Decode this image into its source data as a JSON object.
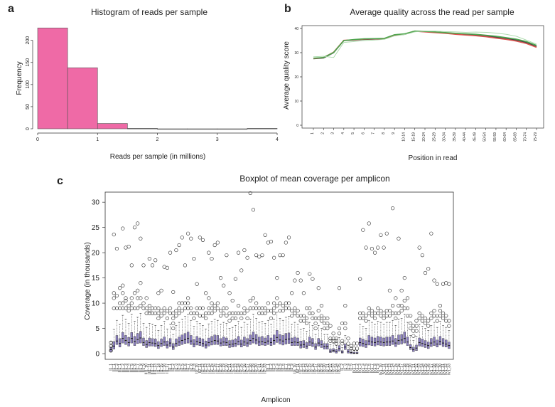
{
  "panels": {
    "a": "a",
    "b": "b",
    "c": "c"
  },
  "chart_data": [
    {
      "type": "bar",
      "title": "Histogram of reads per sample",
      "xlabel": "Reads per sample (in millions)",
      "ylabel": "Frequency",
      "xlim": [
        0,
        4
      ],
      "ylim": [
        0,
        230
      ],
      "xticks": [
        "0",
        "1",
        "2",
        "3",
        "4"
      ],
      "yticks": [
        "0",
        "50",
        "100",
        "150",
        "200"
      ],
      "bin_width": 0.5,
      "bins": [
        [
          0,
          0.5
        ],
        [
          0.5,
          1.0
        ],
        [
          1.0,
          1.5
        ],
        [
          1.5,
          2.0
        ],
        [
          2.0,
          2.5
        ],
        [
          2.5,
          3.0
        ],
        [
          3.0,
          3.5
        ],
        [
          3.5,
          4.0
        ]
      ],
      "values": [
        228,
        138,
        12,
        1,
        0,
        0,
        0,
        1
      ],
      "color": "#ef6aa6",
      "grid": false
    },
    {
      "type": "line",
      "title": "Average quality across the read per sample",
      "xlabel": "Position in read",
      "ylabel": "Average quality score",
      "ylim": [
        0,
        40
      ],
      "yticks": [
        "0",
        "10",
        "20",
        "30",
        "40"
      ],
      "categories": [
        "1",
        "2",
        "3",
        "4",
        "5",
        "6",
        "7",
        "8",
        "9",
        "10-14",
        "15-19",
        "20-24",
        "25-29",
        "30-34",
        "35-39",
        "40-44",
        "45-49",
        "50-54",
        "55-59",
        "60-64",
        "65-69",
        "70-74",
        "75-79"
      ],
      "series": [
        {
          "color": "#444444",
          "values": [
            27.5,
            27.8,
            30,
            35,
            35.2,
            35.5,
            35.6,
            35.7,
            37.2,
            37.6,
            38.8,
            38.7,
            38.4,
            38.1,
            37.8,
            37.5,
            37.3,
            36.9,
            36.4,
            35.8,
            35.2,
            34.2,
            32.5
          ]
        },
        {
          "color": "#d9534f",
          "values": [
            27.6,
            28,
            30.2,
            35.1,
            35.3,
            35.6,
            35.7,
            35.8,
            37.3,
            37.7,
            38.9,
            38.6,
            38.3,
            38,
            37.6,
            37.3,
            37,
            36.6,
            36,
            35.5,
            34.8,
            33.8,
            32.2
          ]
        },
        {
          "color": "#4fa64f",
          "values": [
            27.7,
            28,
            30.1,
            35,
            35.4,
            35.7,
            35.8,
            35.9,
            37.4,
            37.8,
            38.9,
            38.8,
            38.6,
            38.3,
            38,
            37.8,
            37.6,
            37.2,
            36.8,
            36.2,
            35.6,
            34.6,
            33
          ]
        },
        {
          "color": "#a8d8a8",
          "values": [
            28.3,
            28.5,
            28,
            34.2,
            34.6,
            35,
            35.2,
            35.5,
            36.9,
            37.5,
            38.6,
            38.9,
            38.9,
            38.7,
            38.6,
            38.4,
            38.5,
            38.4,
            38.1,
            37.6,
            36.8,
            35.2,
            33.5
          ]
        }
      ],
      "grid": false
    },
    {
      "type": "box",
      "title": "Boxplot of mean coverage per amplicon",
      "xlabel": "Amplicon",
      "ylabel": "Coverage (in thousands)",
      "ylim": [
        0,
        32
      ],
      "yticks": [
        "0",
        "5",
        "10",
        "15",
        "20",
        "25",
        "30"
      ],
      "box_color": "#8b7fc0",
      "amplicon_count": 115,
      "x_tick_labels": [
        "I1_1",
        "II1_1",
        "II1_2",
        "III1_1",
        "III1_2",
        "III1_3",
        "III1_4",
        "III1_5",
        "III1_6",
        "III1_7",
        "III1_8",
        "III1_9",
        "III1_10",
        "III1_11",
        "III1_12",
        "III1_13",
        "II1_14",
        "II1_15",
        "II1_16",
        "II1_17",
        "II2_1",
        "II2_2",
        "II2_3",
        "II2_4",
        "II2_5",
        "II2_6",
        "II2_7",
        "II2_8",
        "II2_9",
        "II2_10",
        "II2_11",
        "II2_12",
        "II2_13",
        "II2_14",
        "II2_15",
        "II2_16",
        "II2_17",
        "II2_18",
        "II2_19",
        "II2_20",
        "II2_21",
        "II2_22",
        "II2_23",
        "II2_24",
        "II2_25",
        "II2_26",
        "II2_27",
        "II2_28",
        "II2_29",
        "II2_30",
        "II2_31",
        "II2_32",
        "II2_33",
        "II3_1",
        "II3_2",
        "II3_3",
        "II3_4",
        "II3_5",
        "II3_6",
        "II3_7",
        "II3_8",
        "II3_9",
        "II3_10",
        "II3_11",
        "II3_12",
        "II3_13",
        "II3_14",
        "II3_15",
        "II3_16",
        "II3_17",
        "II3_18",
        "II3_19",
        "II3_20",
        "II3_21",
        "II3_22",
        "II3_23",
        "II3_24",
        "II3_25",
        "I1_2",
        "I1_3",
        "I1_4",
        "I1_5",
        "IV1_1",
        "IV1_2",
        "IV1_3",
        "IV1_4",
        "IV1_5",
        "IV1_6",
        "IV1_7",
        "IV1_8",
        "IV1_9",
        "IV1_10",
        "IV1_11",
        "IV1_12",
        "IV1_13",
        "IV1_14",
        "IV1_15",
        "IV1_16",
        "IV1_17",
        "IV1_18",
        "IV1_19",
        "IV1_20",
        "IV1_21",
        "IV1_22",
        "IV1_23",
        "IV1_24",
        "IV1_25",
        "IV1_26",
        "IV1_27",
        "IV1_28",
        "IV1_29",
        "IV1_30",
        "IV1_31",
        "IV1_32",
        "IV1_33"
      ],
      "medians": [
        0.8,
        1.5,
        2.5,
        2,
        3,
        2.6,
        2.2,
        3,
        2.4,
        2.8,
        3.1,
        2.2,
        1.8,
        2.2,
        2.1,
        2,
        1.6,
        2,
        2.3,
        1.7,
        2.1,
        1.3,
        2,
        2.3,
        2.6,
        2.8,
        3,
        2.5,
        1.9,
        2.4,
        2.2,
        2,
        1.7,
        2.2,
        2.4,
        2.6,
        2.5,
        2.1,
        2.3,
        2.2,
        1.8,
        1.9,
        2,
        2.4,
        1.9,
        2.3,
        2.1,
        2.6,
        3,
        2.7,
        2.3,
        2.4,
        2.2,
        2.5,
        2.2,
        2.6,
        3.2,
        2.7,
        2.5,
        2.8,
        2.9,
        2.2,
        2.3,
        2.2,
        1.7,
        1.8,
        1.5,
        2.3,
        2.1,
        1.3,
        2.1,
        1.8,
        1.4,
        1.4,
        0.5,
        0.6,
        0.4,
        1,
        0.3,
        1.3,
        0.4,
        0.2,
        0.1,
        0.1,
        2.2,
        2,
        1.8,
        2.5,
        2.3,
        2.2,
        2.4,
        2.3,
        2.2,
        2.3,
        2.3,
        2.5,
        2.1,
        2.6,
        2.7,
        3,
        2.3,
        1.2,
        0.8,
        1.1,
        2.2,
        2,
        1.8,
        1.6,
        2.1,
        2.3,
        1.9,
        2.4,
        2.1,
        1.9,
        1.6
      ],
      "q1": [
        0.4,
        0.9,
        1.8,
        1.3,
        2.1,
        1.8,
        1.5,
        2.1,
        1.6,
        2,
        2.1,
        1.6,
        1.2,
        1.5,
        1.5,
        1.4,
        1,
        1.4,
        1.6,
        1.1,
        1.4,
        0.8,
        1.4,
        1.6,
        1.8,
        2,
        2.1,
        1.8,
        1.3,
        1.7,
        1.6,
        1.4,
        1.1,
        1.5,
        1.7,
        1.8,
        1.8,
        1.5,
        1.6,
        1.6,
        1.2,
        1.3,
        1.4,
        1.7,
        1.3,
        1.6,
        1.4,
        1.8,
        2.1,
        1.9,
        1.6,
        1.7,
        1.6,
        1.8,
        1.6,
        1.8,
        2.2,
        1.9,
        1.7,
        1.9,
        2,
        1.6,
        1.6,
        1.6,
        1.1,
        1.2,
        1,
        1.6,
        1.4,
        0.8,
        1.5,
        1.2,
        0.9,
        0.9,
        0.2,
        0.3,
        0.1,
        0.5,
        0.1,
        0.8,
        0.1,
        0,
        0,
        0,
        1.5,
        1.4,
        1.2,
        1.7,
        1.6,
        1.5,
        1.7,
        1.6,
        1.5,
        1.6,
        1.6,
        1.8,
        1.4,
        1.8,
        1.9,
        2.1,
        1.6,
        0.8,
        0.4,
        0.6,
        1.5,
        1.4,
        1.2,
        1,
        1.4,
        1.6,
        1.3,
        1.7,
        1.4,
        1.3,
        1
      ],
      "q3": [
        1.3,
        2.4,
        3.6,
        3,
        4.2,
        3.6,
        3.2,
        4.2,
        3.4,
        4,
        4.4,
        3.1,
        2.6,
        3.1,
        3,
        2.9,
        2.4,
        2.9,
        3.3,
        2.5,
        3,
        2,
        2.9,
        3.3,
        3.7,
        4,
        4.3,
        3.6,
        2.8,
        3.4,
        3.1,
        2.9,
        2.5,
        3.1,
        3.4,
        3.7,
        3.6,
        3,
        3.3,
        3.1,
        2.6,
        2.7,
        2.9,
        3.4,
        2.7,
        3.3,
        3,
        3.7,
        4.3,
        3.8,
        3.3,
        3.4,
        3.1,
        3.6,
        3.1,
        3.7,
        4.6,
        3.8,
        3.6,
        4,
        4.1,
        3.1,
        3.3,
        3.1,
        2.5,
        2.6,
        2.2,
        3.3,
        3,
        2,
        3,
        2.6,
        2,
        2,
        0.9,
        1,
        0.8,
        1.6,
        0.6,
        1.9,
        0.8,
        0.4,
        0.3,
        0.3,
        3.1,
        2.9,
        2.6,
        3.6,
        3.3,
        3.1,
        3.4,
        3.3,
        3.1,
        3.3,
        3.3,
        3.6,
        3,
        3.7,
        3.8,
        4.3,
        3.3,
        1.8,
        1.3,
        1.7,
        3.1,
        2.9,
        2.6,
        2.3,
        3,
        3.3,
        2.7,
        3.4,
        3,
        2.7,
        2.3
      ],
      "whisker_high": [
        2.4,
        4.8,
        6.6,
        5.8,
        7.6,
        6.8,
        6,
        7.8,
        6.4,
        7.2,
        8,
        6,
        5.2,
        6,
        5.8,
        5.6,
        4.6,
        5.6,
        6.4,
        4.9,
        5.8,
        3.8,
        5.6,
        6.2,
        6.8,
        7.4,
        7.8,
        6.6,
        5.4,
        6.4,
        6,
        5.6,
        4.9,
        5.9,
        6.4,
        6.8,
        6.6,
        5.8,
        6.2,
        6,
        5,
        5.2,
        5.6,
        6.4,
        5.2,
        6.2,
        5.8,
        6.8,
        7.8,
        7,
        6.2,
        6.4,
        6,
        6.6,
        5.8,
        6.8,
        8.2,
        7,
        6.6,
        7.2,
        7.4,
        5.8,
        6.2,
        5.8,
        4.8,
        5,
        4.4,
        6.2,
        5.6,
        3.8,
        5.6,
        5,
        3.8,
        3.8,
        1.8,
        2,
        1.6,
        3.2,
        1.2,
        3.6,
        1.6,
        0.8,
        0.6,
        0.6,
        5.8,
        5.4,
        5,
        6.6,
        6.2,
        5.8,
        6.4,
        6.2,
        5.8,
        6.2,
        6.2,
        6.6,
        5.6,
        6.8,
        7,
        7.8,
        6.2,
        3.6,
        2.6,
        3.4,
        5.8,
        5.4,
        5,
        4.6,
        5.6,
        6.2,
        5.2,
        6.4,
        5.6,
        5.2,
        4.6
      ],
      "outliers": [
        [
          2.2,
          1.5,
          0.6
        ],
        [
          9,
          11,
          12,
          23.6
        ],
        [
          9,
          11.5,
          20.8
        ],
        [
          9,
          13,
          10
        ],
        [
          9,
          10,
          12,
          13.5,
          24.8
        ],
        [
          9,
          10.5,
          11,
          21
        ],
        [
          8.5,
          9.5,
          21.2
        ],
        [
          9,
          10,
          11,
          17.5
        ],
        [
          9,
          12,
          25
        ],
        [
          9,
          11,
          12.5,
          25.8
        ],
        [
          9.5,
          11,
          14,
          22.8
        ],
        [
          9,
          10,
          17.5
        ],
        [
          8,
          9,
          11
        ],
        [
          8,
          8.5,
          9.5,
          18.8
        ],
        [
          8,
          9,
          17.5
        ],
        [
          8,
          9,
          18.5
        ],
        [
          7,
          8,
          9,
          12
        ],
        [
          7.5,
          8.5,
          12.5
        ],
        [
          8,
          9,
          17.2
        ],
        [
          7,
          8.5,
          17
        ],
        [
          8,
          9,
          20
        ],
        [
          5,
          6,
          7,
          8,
          12.2
        ],
        [
          7.5,
          8.5,
          20.5
        ],
        [
          8,
          9,
          10,
          21.5
        ],
        [
          8.5,
          10,
          23
        ],
        [
          9,
          10,
          17.5
        ],
        [
          9,
          10,
          11,
          23.8
        ],
        [
          8,
          9,
          22.8
        ],
        [
          7,
          8,
          18.8
        ],
        [
          8,
          9,
          13.8
        ],
        [
          7.5,
          9,
          23
        ],
        [
          7.5,
          9,
          22.5
        ],
        [
          7,
          8,
          12
        ],
        [
          8,
          9,
          11,
          20
        ],
        [
          8,
          9,
          10,
          18.8
        ],
        [
          8.5,
          9.5,
          21.5
        ],
        [
          9,
          10,
          22
        ],
        [
          7.5,
          8.5,
          15
        ],
        [
          8,
          9,
          13.5
        ],
        [
          7.5,
          9,
          19.5
        ],
        [
          6.5,
          8,
          12
        ],
        [
          7,
          8,
          10.5
        ],
        [
          7,
          8,
          14.8
        ],
        [
          8,
          9.5,
          20
        ],
        [
          7,
          8,
          16.5
        ],
        [
          8,
          9,
          20.5
        ],
        [
          7,
          8.5,
          19
        ],
        [
          9,
          10.5,
          31.8
        ],
        [
          9,
          11,
          28.5
        ],
        [
          9,
          10,
          19.5
        ],
        [
          8,
          9,
          19.2
        ],
        [
          8,
          9,
          19.5
        ],
        [
          8,
          9,
          23.5
        ],
        [
          8.5,
          10,
          22
        ],
        [
          7,
          8.5,
          22.2
        ],
        [
          8,
          9,
          10,
          19
        ],
        [
          9.5,
          11,
          15
        ],
        [
          8.5,
          10,
          19.5
        ],
        [
          8.5,
          9.5,
          19.5
        ],
        [
          9,
          10,
          22
        ],
        [
          9,
          10,
          23
        ],
        [
          7.5,
          8.5,
          12
        ],
        [
          8,
          9,
          14.5
        ],
        [
          7.5,
          8.5,
          16
        ],
        [
          6.5,
          7.5,
          14.5
        ],
        [
          6.5,
          7.5,
          12
        ],
        [
          6,
          7,
          9
        ],
        [
          8,
          9,
          15.8
        ],
        [
          7,
          8,
          14.8
        ],
        [
          5,
          6,
          7
        ],
        [
          7,
          8.5,
          13
        ],
        [
          6.5,
          7.5,
          9.5
        ],
        [
          5,
          6,
          7
        ],
        [
          5,
          6,
          7
        ],
        [
          2.5,
          3,
          5.5
        ],
        [
          2.5,
          3,
          4
        ],
        [
          2,
          2.5,
          3
        ],
        [
          4,
          5,
          13
        ],
        [
          2,
          2.5,
          6
        ],
        [
          5,
          6,
          9.5
        ],
        [
          2,
          3
        ],
        [
          1,
          1.5
        ],
        [
          1,
          2
        ],
        [
          1,
          2
        ],
        [
          7,
          8,
          14.8
        ],
        [
          7,
          8,
          24.5
        ],
        [
          6.5,
          7.5,
          21
        ],
        [
          8,
          9,
          25.8
        ],
        [
          7.5,
          8.5,
          20.8
        ],
        [
          7,
          8,
          20
        ],
        [
          8,
          9,
          21
        ],
        [
          7.5,
          8.5,
          23.5
        ],
        [
          7,
          8,
          21
        ],
        [
          7.5,
          8.5,
          23.8
        ],
        [
          7.5,
          8.5,
          12.5
        ],
        [
          8,
          9.5,
          28.8
        ],
        [
          7,
          8,
          11
        ],
        [
          8,
          9.5,
          22.8
        ],
        [
          8.5,
          9.5,
          12.5
        ],
        [
          9,
          10.5,
          15
        ],
        [
          7.5,
          9,
          11
        ],
        [
          5,
          6,
          7.5
        ],
        [
          3.5,
          4.5,
          5.5
        ],
        [
          4.5,
          5.5,
          6.5
        ],
        [
          7,
          8,
          21
        ],
        [
          6.5,
          7.5,
          19.5
        ],
        [
          6,
          7,
          16
        ],
        [
          5.5,
          6.5,
          16.8
        ],
        [
          7,
          8,
          23.8
        ],
        [
          7.5,
          8.5,
          14.5
        ],
        [
          6.5,
          7.5,
          13.8
        ],
        [
          7.5,
          8.5,
          9.5
        ],
        [
          7,
          8,
          13.8
        ],
        [
          6.5,
          7.5,
          14
        ],
        [
          5.5,
          6.5,
          13.8
        ]
      ]
    }
  ]
}
